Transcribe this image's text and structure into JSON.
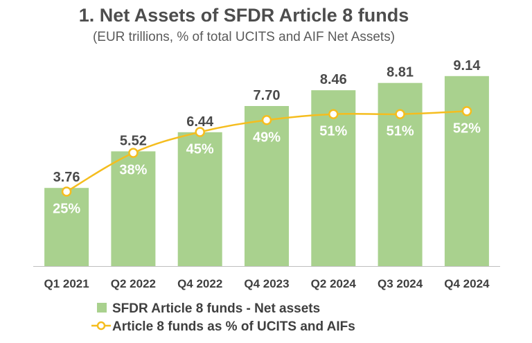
{
  "chart_data": {
    "type": "bar",
    "title": "1. Net Assets of SFDR Article 8 funds",
    "subtitle": "(EUR trillions, % of total UCITS and AIF Net Assets)",
    "categories": [
      "Q1 2021",
      "Q2 2022",
      "Q4 2022",
      "Q4 2023",
      "Q2 2024",
      "Q3 2024",
      "Q4 2024"
    ],
    "series": [
      {
        "name": "SFDR Article 8 funds - Net assets",
        "type": "bar",
        "axis": "left",
        "color": "#a9d18e",
        "values": [
          3.76,
          5.52,
          6.44,
          7.7,
          8.46,
          8.81,
          9.14
        ],
        "labels": [
          "3.76",
          "5.52",
          "6.44",
          "7.70",
          "8.46",
          "8.81",
          "9.14"
        ]
      },
      {
        "name": "Article 8 funds as % of UCITS and AIFs",
        "type": "line",
        "axis": "right",
        "color": "#f5bd1e",
        "marker": "circle",
        "values": [
          25,
          38,
          45,
          49,
          51,
          51,
          52
        ],
        "labels": [
          "25%",
          "38%",
          "45%",
          "49%",
          "51%",
          "51%",
          "52%"
        ]
      }
    ],
    "ylim_left": [
      0,
      10
    ],
    "ylim_right": [
      0,
      100
    ],
    "grid": false,
    "legend_position": "bottom-center"
  }
}
